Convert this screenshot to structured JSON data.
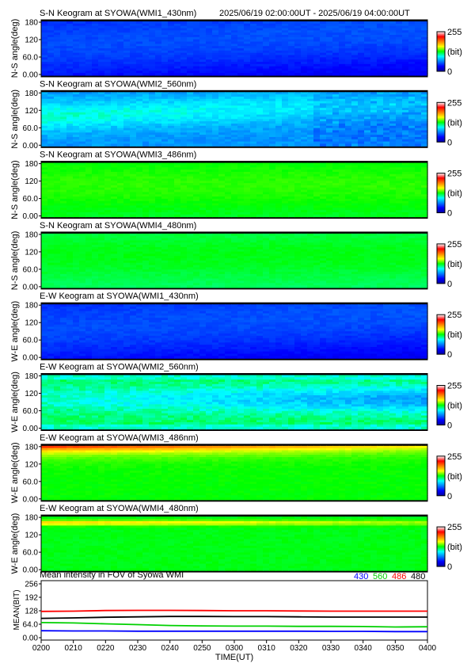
{
  "header": {
    "time_range": "2025/06/19 02:00:00UT - 2025/06/19 04:00:00UT"
  },
  "colorbar": {
    "max_label": "255",
    "unit_label": "(bit)",
    "min_label": "0",
    "stops": [
      "#0000a0",
      "#0000ff",
      "#0080ff",
      "#00ffff",
      "#00ff00",
      "#ffff00",
      "#ff8000",
      "#ff0000",
      "#ffffff"
    ]
  },
  "panels": [
    {
      "title": "S-N Keogram at SYOWA(WMI1_430nm)",
      "ylabel": "N-S angle(deg)",
      "yticks": [
        "180",
        "120",
        "60.0",
        "0.00"
      ],
      "base_level": 0.17,
      "profile": "blue"
    },
    {
      "title": "S-N Keogram at SYOWA(WMI2_560nm)",
      "ylabel": "N-S angle(deg)",
      "yticks": [
        "180",
        "120",
        "60.0",
        "0.00"
      ],
      "base_level": 0.33,
      "profile": "green_arc"
    },
    {
      "title": "S-N Keogram at SYOWA(WMI3_486nm)",
      "ylabel": "N-S angle(deg)",
      "yticks": [
        "180",
        "120",
        "60.0",
        "0.00"
      ],
      "base_level": 0.5,
      "profile": "flat"
    },
    {
      "title": "S-N Keogram at SYOWA(WMI4_480nm)",
      "ylabel": "N-S angle(deg)",
      "yticks": [
        "180",
        "120",
        "60.0",
        "0.00"
      ],
      "base_level": 0.47,
      "profile": "flat"
    },
    {
      "title": "E-W Keogram at SYOWA(WMI1_430nm)",
      "ylabel": "W-E angle(deg)",
      "yticks": [
        "180",
        "120",
        "60.0",
        "0.00"
      ],
      "base_level": 0.17,
      "profile": "blue"
    },
    {
      "title": "E-W Keogram at SYOWA(WMI2_560nm)",
      "ylabel": "W-E angle(deg)",
      "yticks": [
        "180",
        "120",
        "60.0",
        "0.00"
      ],
      "base_level": 0.4,
      "profile": "green_wide"
    },
    {
      "title": "E-W Keogram at SYOWA(WMI3_486nm)",
      "ylabel": "W-E angle(deg)",
      "yticks": [
        "180",
        "120",
        "60.0",
        "0.00"
      ],
      "base_level": 0.52,
      "profile": "top_hot"
    },
    {
      "title": "E-W Keogram at SYOWA(WMI4_480nm)",
      "ylabel": "W-E angle(deg)",
      "yticks": [
        "180",
        "120",
        "60.0",
        "0.00"
      ],
      "base_level": 0.5,
      "profile": "top_warm"
    }
  ],
  "chart_data": {
    "type": "line",
    "title": "Mean intensity in FOV of Syowa WMI",
    "xlabel": "TIME(UT)",
    "ylabel": "MEAN(BIT)",
    "ylim": [
      0,
      256
    ],
    "yticks": [
      "256",
      "192",
      "128",
      "64.0",
      "0.00"
    ],
    "x": [
      "0200",
      "0210",
      "0220",
      "0230",
      "0240",
      "0250",
      "0300",
      "0310",
      "0320",
      "0330",
      "0340",
      "0350",
      "0400"
    ],
    "series": [
      {
        "name": "430",
        "color": "#0000ff",
        "values": [
          33,
          32,
          32,
          31,
          31,
          31,
          31,
          31,
          31,
          30,
          30,
          29,
          29
        ]
      },
      {
        "name": "560",
        "color": "#00d000",
        "values": [
          72,
          70,
          66,
          62,
          58,
          56,
          55,
          55,
          54,
          54,
          53,
          51,
          52
        ]
      },
      {
        "name": "486",
        "color": "#ff0000",
        "values": [
          125,
          126,
          129,
          130,
          130,
          129,
          128,
          128,
          127,
          126,
          126,
          126,
          126
        ]
      },
      {
        "name": "480",
        "color": "#000000",
        "values": [
          92,
          94,
          97,
          99,
          101,
          101,
          100,
          100,
          99,
          98,
          98,
          98,
          98
        ]
      }
    ]
  }
}
